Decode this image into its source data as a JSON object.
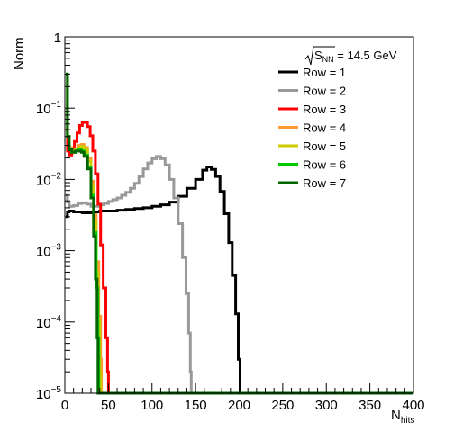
{
  "chart_data": {
    "type": "line",
    "title": "",
    "xlabel": "N",
    "xlabel_sub": "hits",
    "ylabel": "Norm",
    "xlim": [
      0,
      400
    ],
    "ylim": [
      1e-05,
      1
    ],
    "yscale": "log",
    "grid": false,
    "legend_position": "top-right",
    "legend_header": {
      "base": "S",
      "sub": "NN",
      "suffix": " = 14.5 GeV"
    },
    "x_ticks": [
      {
        "value": 0,
        "label": "0"
      },
      {
        "value": 50,
        "label": "50"
      },
      {
        "value": 100,
        "label": "100"
      },
      {
        "value": 150,
        "label": "150"
      },
      {
        "value": 200,
        "label": "200"
      },
      {
        "value": 250,
        "label": "250"
      },
      {
        "value": 300,
        "label": "300"
      },
      {
        "value": 350,
        "label": "350"
      },
      {
        "value": 400,
        "label": "400"
      }
    ],
    "y_ticks": [
      {
        "value": 1e-05,
        "base": "10",
        "exp": "−5"
      },
      {
        "value": 0.0001,
        "base": "10",
        "exp": "−4"
      },
      {
        "value": 0.001,
        "base": "10",
        "exp": "−3"
      },
      {
        "value": 0.01,
        "base": "10",
        "exp": "−2"
      },
      {
        "value": 0.1,
        "base": "10",
        "exp": "−1"
      },
      {
        "value": 1,
        "base": "1",
        "exp": ""
      }
    ],
    "series": [
      {
        "name": "Row = 1",
        "color": "#000000",
        "points": [
          [
            1,
            0.003
          ],
          [
            3,
            0.0035
          ],
          [
            5,
            0.0036
          ],
          [
            10,
            0.0035
          ],
          [
            20,
            0.0034
          ],
          [
            30,
            0.0035
          ],
          [
            40,
            0.0036
          ],
          [
            50,
            0.0036
          ],
          [
            60,
            0.0037
          ],
          [
            70,
            0.0038
          ],
          [
            80,
            0.0039
          ],
          [
            90,
            0.004
          ],
          [
            100,
            0.0042
          ],
          [
            110,
            0.0044
          ],
          [
            120,
            0.0048
          ],
          [
            130,
            0.0058
          ],
          [
            140,
            0.0075
          ],
          [
            150,
            0.01
          ],
          [
            158,
            0.0135
          ],
          [
            163,
            0.015
          ],
          [
            168,
            0.0138
          ],
          [
            173,
            0.011
          ],
          [
            178,
            0.0068
          ],
          [
            183,
            0.0033
          ],
          [
            188,
            0.0013
          ],
          [
            192,
            0.00045
          ],
          [
            196,
            0.00013
          ],
          [
            199,
            3e-05
          ],
          [
            201,
            1e-05
          ]
        ]
      },
      {
        "name": "Row = 2",
        "color": "#999999",
        "points": [
          [
            1,
            0.006
          ],
          [
            3,
            0.0048
          ],
          [
            5,
            0.0042
          ],
          [
            10,
            0.0043
          ],
          [
            15,
            0.0046
          ],
          [
            20,
            0.0047
          ],
          [
            25,
            0.0045
          ],
          [
            30,
            0.0042
          ],
          [
            35,
            0.0042
          ],
          [
            40,
            0.0044
          ],
          [
            45,
            0.0046
          ],
          [
            50,
            0.0049
          ],
          [
            55,
            0.0052
          ],
          [
            60,
            0.0055
          ],
          [
            65,
            0.006
          ],
          [
            70,
            0.0066
          ],
          [
            75,
            0.0075
          ],
          [
            80,
            0.0088
          ],
          [
            85,
            0.011
          ],
          [
            90,
            0.014
          ],
          [
            95,
            0.017
          ],
          [
            100,
            0.0195
          ],
          [
            105,
            0.021
          ],
          [
            110,
            0.0195
          ],
          [
            115,
            0.016
          ],
          [
            120,
            0.01
          ],
          [
            125,
            0.0055
          ],
          [
            130,
            0.0024
          ],
          [
            135,
            0.0008
          ],
          [
            139,
            0.00025
          ],
          [
            142,
            7e-05
          ],
          [
            144,
            2e-05
          ],
          [
            145,
            1e-05
          ]
        ]
      },
      {
        "name": "Row = 3",
        "color": "#ff0000",
        "points": [
          [
            1,
            0.05
          ],
          [
            3,
            0.025
          ],
          [
            5,
            0.022
          ],
          [
            8,
            0.026
          ],
          [
            11,
            0.034
          ],
          [
            14,
            0.045
          ],
          [
            17,
            0.057
          ],
          [
            20,
            0.064
          ],
          [
            23,
            0.063
          ],
          [
            26,
            0.055
          ],
          [
            29,
            0.041
          ],
          [
            32,
            0.025
          ],
          [
            35,
            0.012
          ],
          [
            38,
            0.0045
          ],
          [
            41,
            0.0012
          ],
          [
            44,
            0.0003
          ],
          [
            47,
            6e-05
          ],
          [
            49,
            2e-05
          ],
          [
            50,
            1e-05
          ]
        ]
      },
      {
        "name": "Row = 4",
        "color": "#ff9933",
        "points": [
          [
            1,
            0.3
          ],
          [
            3,
            0.04
          ],
          [
            5,
            0.028
          ],
          [
            8,
            0.025
          ],
          [
            12,
            0.027
          ],
          [
            16,
            0.03
          ],
          [
            19,
            0.031
          ],
          [
            22,
            0.028
          ],
          [
            26,
            0.02
          ],
          [
            30,
            0.0095
          ],
          [
            33,
            0.0032
          ],
          [
            36,
            0.0007
          ],
          [
            39,
            0.00012
          ],
          [
            41,
            3e-05
          ],
          [
            42,
            1e-05
          ]
        ]
      },
      {
        "name": "Row = 5",
        "color": "#cccc00",
        "points": [
          [
            1,
            0.3
          ],
          [
            3,
            0.04
          ],
          [
            5,
            0.027
          ],
          [
            8,
            0.024
          ],
          [
            12,
            0.026
          ],
          [
            16,
            0.028
          ],
          [
            19,
            0.029
          ],
          [
            22,
            0.026
          ],
          [
            26,
            0.018
          ],
          [
            30,
            0.008
          ],
          [
            33,
            0.0025
          ],
          [
            36,
            0.0005
          ],
          [
            38,
            0.0001
          ],
          [
            40,
            2e-05
          ],
          [
            41,
            1e-05
          ]
        ]
      },
      {
        "name": "Row = 6",
        "color": "#00cc00",
        "points": [
          [
            1,
            0.3
          ],
          [
            3,
            0.04
          ],
          [
            5,
            0.026
          ],
          [
            8,
            0.024
          ],
          [
            12,
            0.025
          ],
          [
            16,
            0.026
          ],
          [
            19,
            0.025
          ],
          [
            22,
            0.022
          ],
          [
            26,
            0.015
          ],
          [
            30,
            0.006
          ],
          [
            33,
            0.0018
          ],
          [
            36,
            0.0003
          ],
          [
            38,
            6e-05
          ],
          [
            39,
            1e-05
          ]
        ]
      },
      {
        "name": "Row = 7",
        "color": "#006600",
        "points": [
          [
            1,
            0.3
          ],
          [
            3,
            0.04
          ],
          [
            5,
            0.026
          ],
          [
            8,
            0.024
          ],
          [
            12,
            0.025
          ],
          [
            16,
            0.025
          ],
          [
            19,
            0.024
          ],
          [
            22,
            0.021
          ],
          [
            26,
            0.014
          ],
          [
            30,
            0.0055
          ],
          [
            33,
            0.0016
          ],
          [
            35,
            0.0004
          ],
          [
            37,
            6e-05
          ],
          [
            38,
            1e-05
          ]
        ]
      }
    ]
  }
}
